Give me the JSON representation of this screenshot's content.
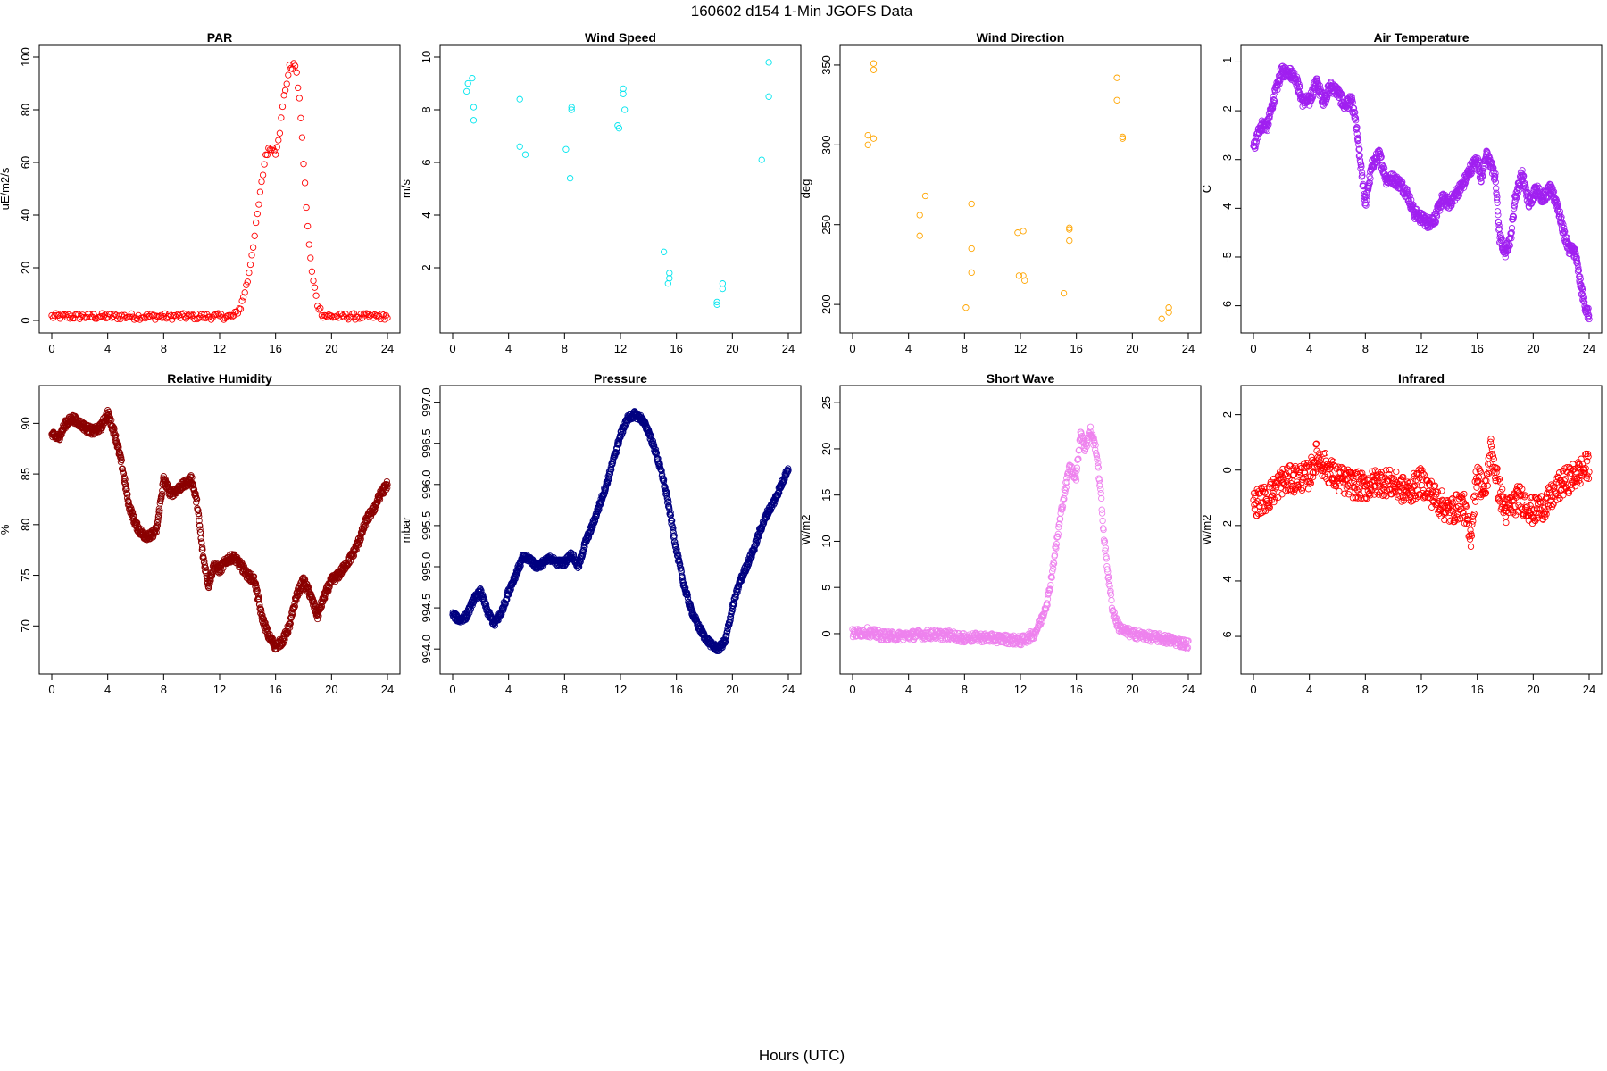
{
  "figure_title": "160602   d154   1-Min  JGOFS Data",
  "xlabel": "Hours (UTC)",
  "chart_data": [
    {
      "type": "scatter",
      "title": "PAR",
      "ylabel": "uE/m2/s",
      "color": "#ff0000",
      "xlim": [
        0,
        24
      ],
      "ylim": [
        0,
        100
      ],
      "x_ticks": [
        "0",
        "4",
        "8",
        "12",
        "16",
        "20",
        "24"
      ],
      "y_ticks": [
        "0",
        "20",
        "40",
        "60",
        "80",
        "100"
      ],
      "trend": [
        [
          0,
          1.5
        ],
        [
          13,
          1.5
        ],
        [
          13.5,
          5
        ],
        [
          14,
          15
        ],
        [
          14.5,
          32
        ],
        [
          15,
          52
        ],
        [
          15.3,
          63
        ],
        [
          15.7,
          66
        ],
        [
          16,
          64
        ],
        [
          16.3,
          72
        ],
        [
          16.6,
          85
        ],
        [
          17,
          96
        ],
        [
          17.4,
          97
        ],
        [
          17.7,
          85
        ],
        [
          18,
          60
        ],
        [
          18.3,
          35
        ],
        [
          18.6,
          18
        ],
        [
          19,
          6
        ],
        [
          19.4,
          2
        ],
        [
          20,
          1.5
        ],
        [
          24,
          1.5
        ]
      ],
      "noise": 1.2,
      "step": 0.1
    },
    {
      "type": "scatter",
      "title": "Wind Speed",
      "ylabel": "m/s",
      "color": "#00e5ee",
      "xlim": [
        0,
        24
      ],
      "ylim": [
        0,
        10
      ],
      "x_ticks": [
        "0",
        "4",
        "8",
        "12",
        "16",
        "20",
        "24"
      ],
      "y_ticks": [
        "2",
        "4",
        "6",
        "8",
        "10"
      ],
      "points": [
        [
          1.0,
          8.7
        ],
        [
          1.1,
          9.0
        ],
        [
          1.4,
          9.2
        ],
        [
          1.5,
          8.1
        ],
        [
          1.5,
          7.6
        ],
        [
          4.8,
          8.4
        ],
        [
          4.8,
          6.6
        ],
        [
          5.2,
          6.3
        ],
        [
          8.1,
          6.5
        ],
        [
          8.4,
          5.4
        ],
        [
          8.5,
          8.1
        ],
        [
          8.5,
          8.0
        ],
        [
          11.8,
          7.4
        ],
        [
          11.9,
          7.3
        ],
        [
          12.2,
          8.8
        ],
        [
          12.2,
          8.6
        ],
        [
          12.3,
          8.0
        ],
        [
          15.1,
          2.6
        ],
        [
          15.5,
          1.8
        ],
        [
          15.5,
          1.6
        ],
        [
          15.4,
          1.4
        ],
        [
          18.9,
          0.7
        ],
        [
          18.9,
          0.6
        ],
        [
          19.3,
          1.4
        ],
        [
          19.3,
          1.2
        ],
        [
          22.1,
          6.1
        ],
        [
          22.6,
          9.8
        ],
        [
          22.6,
          8.5
        ]
      ]
    },
    {
      "type": "scatter",
      "title": "Wind Direction",
      "ylabel": "deg",
      "color": "#ffa500",
      "xlim": [
        0,
        24
      ],
      "ylim": [
        190,
        355
      ],
      "x_ticks": [
        "0",
        "4",
        "8",
        "12",
        "16",
        "20",
        "24"
      ],
      "y_ticks": [
        "200",
        "250",
        "300",
        "350"
      ],
      "points": [
        [
          1.1,
          306
        ],
        [
          1.1,
          300
        ],
        [
          1.5,
          304
        ],
        [
          1.5,
          351
        ],
        [
          1.5,
          347
        ],
        [
          4.8,
          256
        ],
        [
          4.8,
          243
        ],
        [
          5.2,
          268
        ],
        [
          8.1,
          198
        ],
        [
          8.5,
          263
        ],
        [
          8.5,
          235
        ],
        [
          8.5,
          220
        ],
        [
          11.8,
          245
        ],
        [
          11.9,
          218
        ],
        [
          12.2,
          246
        ],
        [
          12.2,
          218
        ],
        [
          12.3,
          215
        ],
        [
          15.1,
          207
        ],
        [
          15.5,
          248
        ],
        [
          15.5,
          247
        ],
        [
          15.5,
          240
        ],
        [
          18.9,
          342
        ],
        [
          18.9,
          328
        ],
        [
          19.3,
          305
        ],
        [
          19.3,
          304
        ],
        [
          22.1,
          191
        ],
        [
          22.6,
          198
        ],
        [
          22.6,
          195
        ]
      ]
    },
    {
      "type": "scatter",
      "title": "Air Temperature",
      "ylabel": "C",
      "color": "#a020f0",
      "xlim": [
        0,
        24
      ],
      "ylim": [
        -6.3,
        -0.9
      ],
      "x_ticks": [
        "0",
        "4",
        "8",
        "12",
        "16",
        "20",
        "24"
      ],
      "y_ticks": [
        "-6",
        "-5",
        "-4",
        "-3",
        "-2",
        "-1"
      ],
      "trend": [
        [
          0,
          -2.8
        ],
        [
          0.5,
          -2.3
        ],
        [
          1,
          -2.3
        ],
        [
          1.5,
          -1.7
        ],
        [
          2,
          -1.2
        ],
        [
          2.5,
          -1.2
        ],
        [
          3,
          -1.3
        ],
        [
          3.5,
          -1.8
        ],
        [
          4,
          -1.8
        ],
        [
          4.5,
          -1.4
        ],
        [
          5,
          -1.8
        ],
        [
          5.5,
          -1.5
        ],
        [
          6,
          -1.6
        ],
        [
          6.5,
          -1.9
        ],
        [
          7,
          -1.8
        ],
        [
          7.3,
          -2.2
        ],
        [
          7.7,
          -3.2
        ],
        [
          8,
          -3.9
        ],
        [
          8.5,
          -3.1
        ],
        [
          9,
          -2.9
        ],
        [
          9.5,
          -3.4
        ],
        [
          10,
          -3.4
        ],
        [
          10.5,
          -3.5
        ],
        [
          11,
          -3.7
        ],
        [
          11.5,
          -4.1
        ],
        [
          12,
          -4.2
        ],
        [
          12.5,
          -4.3
        ],
        [
          13,
          -4.2
        ],
        [
          13.5,
          -3.8
        ],
        [
          14,
          -3.9
        ],
        [
          14.5,
          -3.7
        ],
        [
          15,
          -3.5
        ],
        [
          15.5,
          -3.2
        ],
        [
          16,
          -3.0
        ],
        [
          16.3,
          -3.4
        ],
        [
          16.6,
          -2.9
        ],
        [
          17,
          -3.1
        ],
        [
          17.3,
          -3.4
        ],
        [
          17.6,
          -4.6
        ],
        [
          18,
          -4.9
        ],
        [
          18.4,
          -4.6
        ],
        [
          18.7,
          -3.8
        ],
        [
          19.2,
          -3.3
        ],
        [
          19.7,
          -3.9
        ],
        [
          20.2,
          -3.6
        ],
        [
          20.7,
          -3.8
        ],
        [
          21.2,
          -3.6
        ],
        [
          21.7,
          -3.9
        ],
        [
          22.1,
          -4.4
        ],
        [
          22.5,
          -4.8
        ],
        [
          23,
          -4.9
        ],
        [
          23.4,
          -5.6
        ],
        [
          23.8,
          -6.1
        ],
        [
          24,
          -6.2
        ]
      ],
      "noise": 0.12,
      "step": 0.02
    },
    {
      "type": "scatter",
      "title": "Relative Humidity",
      "ylabel": "%",
      "color": "#8b0000",
      "xlim": [
        0,
        24
      ],
      "ylim": [
        66.5,
        92.5
      ],
      "x_ticks": [
        "0",
        "4",
        "8",
        "12",
        "16",
        "20",
        "24"
      ],
      "y_ticks": [
        "70",
        "75",
        "80",
        "85",
        "90"
      ],
      "trend": [
        [
          0,
          88.8
        ],
        [
          0.5,
          88.6
        ],
        [
          1,
          90
        ],
        [
          1.5,
          90.5
        ],
        [
          2,
          90
        ],
        [
          2.5,
          89.5
        ],
        [
          3,
          89.2
        ],
        [
          3.5,
          89.6
        ],
        [
          4,
          91
        ],
        [
          4.5,
          89
        ],
        [
          5,
          86
        ],
        [
          5.5,
          82
        ],
        [
          6,
          80
        ],
        [
          6.5,
          79
        ],
        [
          7,
          78.8
        ],
        [
          7.5,
          79.5
        ],
        [
          8,
          84.5
        ],
        [
          8.5,
          83
        ],
        [
          9,
          83.5
        ],
        [
          9.5,
          84
        ],
        [
          10,
          84.5
        ],
        [
          10.4,
          82
        ],
        [
          10.8,
          77
        ],
        [
          11.2,
          74
        ],
        [
          11.6,
          76
        ],
        [
          12,
          75.5
        ],
        [
          12.5,
          76.5
        ],
        [
          13,
          76.8
        ],
        [
          13.5,
          76
        ],
        [
          14,
          75
        ],
        [
          14.5,
          74.5
        ],
        [
          15,
          71
        ],
        [
          15.5,
          69
        ],
        [
          16,
          68
        ],
        [
          16.5,
          68.5
        ],
        [
          17,
          70
        ],
        [
          17.5,
          73
        ],
        [
          18,
          74.5
        ],
        [
          18.5,
          73
        ],
        [
          19,
          71
        ],
        [
          19.5,
          73
        ],
        [
          20,
          74.5
        ],
        [
          20.5,
          75
        ],
        [
          21,
          76
        ],
        [
          21.5,
          77
        ],
        [
          22,
          78.5
        ],
        [
          22.5,
          80.5
        ],
        [
          23,
          81.5
        ],
        [
          23.5,
          83
        ],
        [
          24,
          84
        ]
      ],
      "noise": 0.4,
      "step": 0.02
    },
    {
      "type": "scatter",
      "title": "Pressure",
      "ylabel": "mbar",
      "color": "#000080",
      "xlim": [
        0,
        24
      ],
      "ylim": [
        993.85,
        997.05
      ],
      "x_ticks": [
        "0",
        "4",
        "8",
        "12",
        "16",
        "20",
        "24"
      ],
      "y_ticks": [
        "994.0",
        "994.5",
        "995.0",
        "995.5",
        "996.0",
        "996.5",
        "997.0"
      ],
      "trend": [
        [
          0,
          994.42
        ],
        [
          0.5,
          994.35
        ],
        [
          1,
          994.4
        ],
        [
          1.5,
          994.6
        ],
        [
          2,
          994.7
        ],
        [
          2.5,
          994.45
        ],
        [
          3,
          994.3
        ],
        [
          3.5,
          994.45
        ],
        [
          4,
          994.7
        ],
        [
          4.5,
          994.9
        ],
        [
          5,
          995.1
        ],
        [
          5.5,
          995.1
        ],
        [
          6,
          995.0
        ],
        [
          6.5,
          995.05
        ],
        [
          7,
          995.1
        ],
        [
          7.5,
          995.05
        ],
        [
          8,
          995.05
        ],
        [
          8.5,
          995.15
        ],
        [
          9,
          995.0
        ],
        [
          9.5,
          995.3
        ],
        [
          10,
          995.5
        ],
        [
          10.5,
          995.75
        ],
        [
          11,
          996.0
        ],
        [
          11.5,
          996.3
        ],
        [
          12,
          996.6
        ],
        [
          12.5,
          996.8
        ],
        [
          13,
          996.85
        ],
        [
          13.5,
          996.8
        ],
        [
          14,
          996.65
        ],
        [
          14.5,
          996.4
        ],
        [
          15,
          996.1
        ],
        [
          15.5,
          995.7
        ],
        [
          16,
          995.2
        ],
        [
          16.5,
          994.8
        ],
        [
          17,
          994.5
        ],
        [
          17.5,
          994.3
        ],
        [
          18,
          994.15
        ],
        [
          18.5,
          994.05
        ],
        [
          19,
          994.0
        ],
        [
          19.5,
          994.1
        ],
        [
          20,
          994.5
        ],
        [
          20.5,
          994.8
        ],
        [
          21,
          995.0
        ],
        [
          21.5,
          995.2
        ],
        [
          22,
          995.45
        ],
        [
          22.5,
          995.65
        ],
        [
          23,
          995.8
        ],
        [
          23.5,
          996.0
        ],
        [
          24,
          996.2
        ]
      ],
      "noise": 0.04,
      "step": 0.02
    },
    {
      "type": "scatter",
      "title": "Short Wave",
      "ylabel": "W/m2",
      "color": "#ee82ee",
      "xlim": [
        0,
        24
      ],
      "ylim": [
        -3,
        25.5
      ],
      "x_ticks": [
        "0",
        "4",
        "8",
        "12",
        "16",
        "20",
        "24"
      ],
      "y_ticks": [
        "0",
        "5",
        "10",
        "15",
        "20",
        "25"
      ],
      "trend": [
        [
          0,
          0
        ],
        [
          1,
          0.2
        ],
        [
          2,
          -0.2
        ],
        [
          3,
          -0.3
        ],
        [
          4,
          -0.2
        ],
        [
          5,
          -0.1
        ],
        [
          6,
          -0.1
        ],
        [
          7,
          -0.2
        ],
        [
          8,
          -0.5
        ],
        [
          9,
          -0.4
        ],
        [
          10,
          -0.5
        ],
        [
          11,
          -0.6
        ],
        [
          12,
          -0.8
        ],
        [
          12.5,
          -0.5
        ],
        [
          13,
          0
        ],
        [
          13.5,
          1.5
        ],
        [
          14,
          4
        ],
        [
          14.5,
          9
        ],
        [
          15,
          14
        ],
        [
          15.5,
          18
        ],
        [
          16,
          17
        ],
        [
          16.3,
          22
        ],
        [
          16.6,
          20
        ],
        [
          17,
          22
        ],
        [
          17.4,
          20
        ],
        [
          17.7,
          16
        ],
        [
          18,
          10
        ],
        [
          18.3,
          6
        ],
        [
          18.6,
          2.5
        ],
        [
          19,
          0.8
        ],
        [
          19.5,
          0.2
        ],
        [
          20,
          0
        ],
        [
          21,
          -0.3
        ],
        [
          22,
          -0.5
        ],
        [
          23,
          -0.8
        ],
        [
          24,
          -1.2
        ]
      ],
      "noise": 0.5,
      "step": 0.03
    },
    {
      "type": "scatter",
      "title": "Infrared",
      "ylabel": "W/m2",
      "color": "#ff0000",
      "xlim": [
        0,
        24
      ],
      "ylim": [
        -6.9,
        2.6
      ],
      "x_ticks": [
        "0",
        "4",
        "8",
        "12",
        "16",
        "20",
        "24"
      ],
      "y_ticks": [
        "-6",
        "-4",
        "-2",
        "0",
        "2"
      ],
      "trend": [
        [
          0,
          -1.2
        ],
        [
          1,
          -1.0
        ],
        [
          2,
          -0.4
        ],
        [
          3,
          -0.3
        ],
        [
          4,
          -0.2
        ],
        [
          4.5,
          0.5
        ],
        [
          5,
          0.2
        ],
        [
          6,
          -0.3
        ],
        [
          7,
          -0.5
        ],
        [
          8,
          -0.6
        ],
        [
          9,
          -0.4
        ],
        [
          10,
          -0.5
        ],
        [
          11,
          -0.8
        ],
        [
          12,
          -0.4
        ],
        [
          13,
          -1.0
        ],
        [
          14,
          -1.5
        ],
        [
          15,
          -1.2
        ],
        [
          15.5,
          -2.5
        ],
        [
          16,
          0
        ],
        [
          16.5,
          -1
        ],
        [
          17,
          0.8
        ],
        [
          17.5,
          -0.6
        ],
        [
          18,
          -1.5
        ],
        [
          19,
          -1.0
        ],
        [
          20,
          -1.5
        ],
        [
          21,
          -1.2
        ],
        [
          22,
          -0.5
        ],
        [
          23,
          -0.2
        ],
        [
          24,
          0.2
        ]
      ],
      "noise": 0.5,
      "step": 0.03
    }
  ]
}
